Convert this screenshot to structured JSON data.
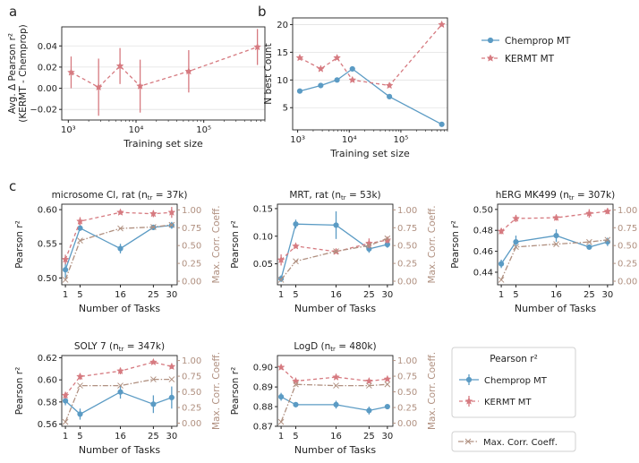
{
  "colors": {
    "chemprop": "#5b9bc4",
    "kermt": "#d67a80",
    "corr": "#b09080",
    "grid": "#e2e2e2",
    "axis": "#222222"
  },
  "legend": {
    "pearson_title": "Pearson r²",
    "chemprop": "Chemprop MT",
    "kermt": "KERMT MT",
    "corr": "Max. Corr. Coeff."
  },
  "chart_data": [
    {
      "id": "a",
      "panel_label": "a",
      "type": "line",
      "xscale": "log",
      "xlabel": "Training set size",
      "ylabel": "Avg. Δ Pearson r²\n(KERMT - Chemprop)",
      "xlim": [
        800,
        800000
      ],
      "ylim": [
        -0.03,
        0.058
      ],
      "xticks": [
        1000,
        10000,
        100000
      ],
      "xtick_labels": [
        "10³",
        "10⁴",
        "10⁵"
      ],
      "yticks": [
        -0.02,
        0,
        0.02,
        0.04
      ],
      "ytick_labels": [
        "−0.02",
        "0.00",
        "0.02",
        "0.04"
      ],
      "grid": true,
      "series": [
        {
          "name": "KERMT - Chemprop",
          "style": "kermt",
          "x": [
            1100,
            2800,
            5800,
            11500,
            60000,
            620000
          ],
          "y": [
            0.015,
            0.001,
            0.021,
            0.002,
            0.016,
            0.039
          ],
          "err": [
            0.015,
            0.027,
            0.017,
            0.025,
            0.02,
            0.017
          ]
        }
      ]
    },
    {
      "id": "b",
      "panel_label": "b",
      "type": "line",
      "xscale": "log",
      "xlabel": "Training set size",
      "ylabel": "N_best Count",
      "xlim": [
        800,
        800000
      ],
      "ylim": [
        1,
        21.2
      ],
      "xticks": [
        1000,
        10000,
        100000
      ],
      "xtick_labels": [
        "10³",
        "10⁴",
        "10⁵"
      ],
      "yticks": [
        5,
        10,
        15,
        20
      ],
      "ytick_labels": [
        "5",
        "10",
        "15",
        "20"
      ],
      "grid": true,
      "series": [
        {
          "name": "Chemprop MT",
          "style": "chemprop",
          "x": [
            1100,
            2800,
            5800,
            11500,
            60000,
            620000
          ],
          "y": [
            8,
            9,
            10,
            12,
            7,
            2
          ]
        },
        {
          "name": "KERMT MT",
          "style": "kermt",
          "x": [
            1100,
            2800,
            5800,
            11500,
            60000,
            620000
          ],
          "y": [
            14,
            12,
            14,
            10,
            9,
            20
          ]
        }
      ]
    },
    {
      "id": "c1",
      "panel_label": "c",
      "type": "line",
      "title": "microsome Cl, rat",
      "title_ntr": "37k",
      "xlabel": "Number of Tasks",
      "ylabel": "Pearson r²",
      "ylabel_right": "Max. Corr. Coeff.",
      "xlim": [
        0,
        31.5
      ],
      "xticks": [
        1,
        5,
        16,
        25,
        30
      ],
      "ylim": [
        0.49,
        0.608
      ],
      "yticks": [
        0.5,
        0.55,
        0.6
      ],
      "ytick_labels": [
        "0.50",
        "0.55",
        "0.60"
      ],
      "ylim_right": [
        -0.05,
        1.08
      ],
      "yticks_right": [
        0,
        0.25,
        0.5,
        0.75,
        1
      ],
      "ytick_labels_right": [
        "0.00",
        "0.25",
        "0.50",
        "0.75",
        "1.00"
      ],
      "series": [
        {
          "name": "Chemprop MT",
          "style": "chemprop",
          "x": [
            1,
            5,
            16,
            25,
            30
          ],
          "y": [
            0.512,
            0.573,
            0.543,
            0.574,
            0.577
          ],
          "err": [
            0.012,
            0.004,
            0.007,
            0.004,
            0.005
          ]
        },
        {
          "name": "KERMT MT",
          "style": "kermt",
          "x": [
            1,
            5,
            16,
            25,
            30
          ],
          "y": [
            0.527,
            0.583,
            0.596,
            0.594,
            0.596
          ],
          "err": [
            0.007,
            0.006,
            0.003,
            0.005,
            0.008
          ]
        },
        {
          "name": "Max. Corr. Coeff.",
          "style": "corr",
          "axis": "right",
          "x": [
            1,
            5,
            16,
            25,
            30
          ],
          "y": [
            0.02,
            0.57,
            0.74,
            0.76,
            0.79
          ]
        }
      ]
    },
    {
      "id": "c2",
      "type": "line",
      "title": "MRT, rat",
      "title_ntr": "53k",
      "xlabel": "Number of Tasks",
      "ylabel": "Pearson r²",
      "ylabel_right": "Max. Corr. Coeff.",
      "xlim": [
        0,
        31.5
      ],
      "xticks": [
        1,
        5,
        16,
        25,
        30
      ],
      "ylim": [
        0.012,
        0.158
      ],
      "yticks": [
        0.05,
        0.1,
        0.15
      ],
      "ytick_labels": [
        "0.05",
        "0.10",
        "0.15"
      ],
      "ylim_right": [
        -0.05,
        1.08
      ],
      "yticks_right": [
        0,
        0.25,
        0.5,
        0.75,
        1
      ],
      "ytick_labels_right": [
        "0.00",
        "0.25",
        "0.50",
        "0.75",
        "1.00"
      ],
      "series": [
        {
          "name": "Chemprop MT",
          "style": "chemprop",
          "x": [
            1,
            5,
            16,
            25,
            30
          ],
          "y": [
            0.023,
            0.122,
            0.12,
            0.077,
            0.085
          ],
          "err": [
            0.006,
            0.008,
            0.025,
            0.007,
            0.006
          ]
        },
        {
          "name": "KERMT MT",
          "style": "kermt",
          "x": [
            1,
            5,
            16,
            25,
            30
          ],
          "y": [
            0.057,
            0.082,
            0.072,
            0.087,
            0.093
          ],
          "err": [
            0.01,
            0.004,
            0.003,
            0.009,
            0.006
          ]
        },
        {
          "name": "Max. Corr. Coeff.",
          "style": "corr",
          "axis": "right",
          "x": [
            1,
            5,
            16,
            25,
            30
          ],
          "y": [
            0.02,
            0.28,
            0.42,
            0.5,
            0.6
          ]
        }
      ]
    },
    {
      "id": "c3",
      "type": "line",
      "title": "hERG MK499",
      "title_ntr": "307k",
      "xlabel": "Number of Tasks",
      "ylabel": "Pearson r²",
      "ylabel_right": "Max. Corr. Coeff.",
      "xlim": [
        0,
        31.5
      ],
      "xticks": [
        1,
        5,
        16,
        25,
        30
      ],
      "ylim": [
        0.428,
        0.505
      ],
      "yticks": [
        0.44,
        0.46,
        0.48,
        0.5
      ],
      "ytick_labels": [
        "0.44",
        "0.46",
        "0.48",
        "0.50"
      ],
      "ylim_right": [
        -0.05,
        1.08
      ],
      "yticks_right": [
        0,
        0.25,
        0.5,
        0.75,
        1
      ],
      "ytick_labels_right": [
        "0.00",
        "0.25",
        "0.50",
        "0.75",
        "1.00"
      ],
      "series": [
        {
          "name": "Chemprop MT",
          "style": "chemprop",
          "x": [
            1,
            5,
            16,
            25,
            30
          ],
          "y": [
            0.448,
            0.469,
            0.475,
            0.464,
            0.469
          ],
          "err": [
            0.004,
            0.006,
            0.006,
            0.002,
            0.004
          ]
        },
        {
          "name": "KERMT MT",
          "style": "kermt",
          "x": [
            1,
            5,
            16,
            25,
            30
          ],
          "y": [
            0.7,
            0.88,
            0.89,
            0.95,
            0.98
          ],
          "err": [
            0.04,
            0.05,
            0.04,
            0.06,
            0.04
          ],
          "axis": "right"
        },
        {
          "name": "Max. Corr. Coeff.",
          "style": "corr",
          "axis": "right",
          "x": [
            1,
            5,
            16,
            25,
            30
          ],
          "y": [
            0.02,
            0.48,
            0.52,
            0.55,
            0.58
          ]
        }
      ]
    },
    {
      "id": "c4",
      "type": "line",
      "title": "SOLY 7",
      "title_ntr": "347k",
      "xlabel": "Number of Tasks",
      "ylabel": "Pearson r²",
      "ylabel_right": "Max. Corr. Coeff.",
      "xlim": [
        0,
        31.5
      ],
      "xticks": [
        1,
        5,
        16,
        25,
        30
      ],
      "ylim": [
        0.558,
        0.622
      ],
      "yticks": [
        0.56,
        0.58,
        0.6,
        0.62
      ],
      "ytick_labels": [
        "0.56",
        "0.58",
        "0.60",
        "0.62"
      ],
      "ylim_right": [
        -0.05,
        1.08
      ],
      "yticks_right": [
        0,
        0.25,
        0.5,
        0.75,
        1
      ],
      "ytick_labels_right": [
        "0.00",
        "0.25",
        "0.50",
        "0.75",
        "1.00"
      ],
      "series": [
        {
          "name": "Chemprop MT",
          "style": "chemprop",
          "x": [
            1,
            5,
            16,
            25,
            30
          ],
          "y": [
            0.581,
            0.569,
            0.589,
            0.578,
            0.584
          ],
          "err": [
            0.004,
            0.005,
            0.006,
            0.008,
            0.01
          ]
        },
        {
          "name": "KERMT MT",
          "style": "kermt",
          "x": [
            1,
            5,
            16,
            25,
            30
          ],
          "y": [
            0.586,
            0.603,
            0.608,
            0.616,
            0.612
          ],
          "err": [
            0.003,
            0.003,
            0.003,
            0.001,
            0.002
          ]
        },
        {
          "name": "Max. Corr. Coeff.",
          "style": "corr",
          "axis": "right",
          "x": [
            1,
            5,
            16,
            25,
            30
          ],
          "y": [
            0.02,
            0.6,
            0.6,
            0.7,
            0.7
          ]
        }
      ]
    },
    {
      "id": "c5",
      "type": "line",
      "title": "LogD",
      "title_ntr": "480k",
      "xlabel": "Number of Tasks",
      "ylabel": "Pearson r²",
      "ylabel_right": "Max. Corr. Coeff.",
      "xlim": [
        0,
        31.5
      ],
      "xticks": [
        1,
        5,
        16,
        25,
        30
      ],
      "ylim": [
        0.87,
        0.906
      ],
      "yticks": [
        0.87,
        0.88,
        0.89,
        0.9
      ],
      "ytick_labels": [
        "0.87",
        "0.88",
        "0.89",
        "0.90"
      ],
      "ylim_right": [
        -0.05,
        1.08
      ],
      "yticks_right": [
        0,
        0.25,
        0.5,
        0.75,
        1
      ],
      "ytick_labels_right": [
        "0.00",
        "0.25",
        "0.50",
        "0.75",
        "1.00"
      ],
      "series": [
        {
          "name": "Chemprop MT",
          "style": "chemprop",
          "x": [
            1,
            5,
            16,
            25,
            30
          ],
          "y": [
            0.885,
            0.881,
            0.881,
            0.878,
            0.88
          ],
          "err": [
            0.002,
            0.0005,
            0.002,
            0.002,
            0.0005
          ]
        },
        {
          "name": "KERMT MT",
          "style": "kermt",
          "x": [
            1,
            5,
            16,
            25,
            30
          ],
          "y": [
            0.9,
            0.893,
            0.895,
            0.893,
            0.894
          ],
          "err": [
            0.001,
            0.0005,
            0.0005,
            0.001,
            0.001
          ]
        },
        {
          "name": "Max. Corr. Coeff.",
          "style": "corr",
          "axis": "right",
          "x": [
            1,
            5,
            16,
            25,
            30
          ],
          "y": [
            0.02,
            0.62,
            0.6,
            0.6,
            0.62
          ]
        }
      ]
    }
  ]
}
